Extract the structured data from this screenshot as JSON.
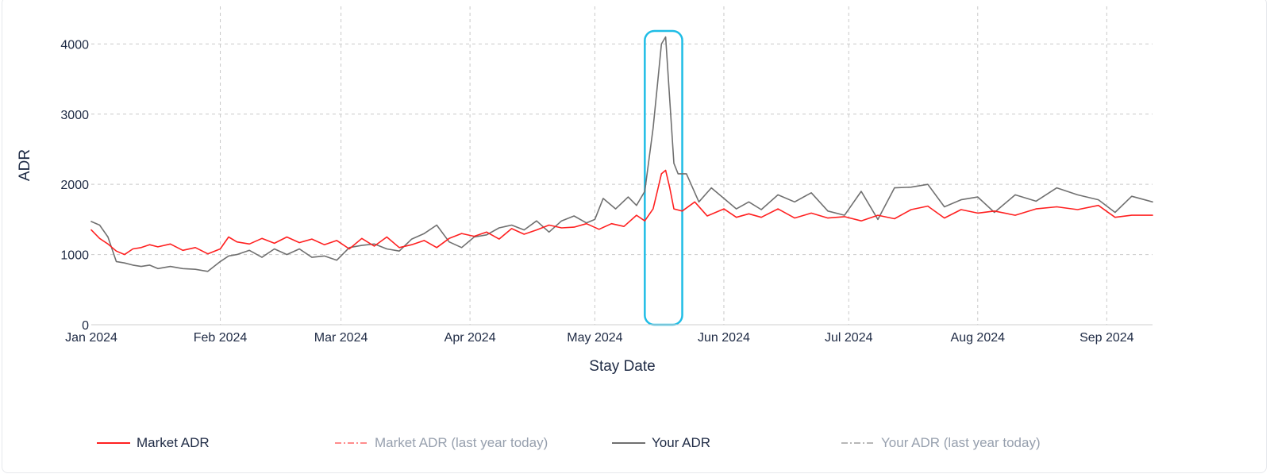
{
  "chart_data": {
    "type": "line",
    "xlabel": "Stay Date",
    "ylabel": "ADR",
    "ylim": [
      0,
      4400
    ],
    "xlim": [
      "2024-01-01",
      "2024-09-12"
    ],
    "yticks": [
      0,
      1000,
      2000,
      3000,
      4000
    ],
    "xticks": [
      {
        "label": "Jan 2024",
        "date": "2024-01-01"
      },
      {
        "label": "Feb 2024",
        "date": "2024-02-01"
      },
      {
        "label": "Mar 2024",
        "date": "2024-03-01"
      },
      {
        "label": "Apr 2024",
        "date": "2024-04-01"
      },
      {
        "label": "May 2024",
        "date": "2024-05-01"
      },
      {
        "label": "Jun 2024",
        "date": "2024-06-01"
      },
      {
        "label": "Jul 2024",
        "date": "2024-07-01"
      },
      {
        "label": "Aug 2024",
        "date": "2024-08-01"
      },
      {
        "label": "Sep 2024",
        "date": "2024-09-01"
      }
    ],
    "grid": true,
    "legend_position": "bottom",
    "highlight": {
      "x_start": "2024-05-13",
      "x_end": "2024-05-22",
      "color": "#1fbde6"
    },
    "series": [
      {
        "name": "Market ADR",
        "color": "#ff2020",
        "dash": "solid",
        "visible": true,
        "x": [
          "2024-01-01",
          "2024-01-03",
          "2024-01-05",
          "2024-01-07",
          "2024-01-09",
          "2024-01-11",
          "2024-01-13",
          "2024-01-15",
          "2024-01-17",
          "2024-01-20",
          "2024-01-23",
          "2024-01-26",
          "2024-01-29",
          "2024-02-01",
          "2024-02-03",
          "2024-02-05",
          "2024-02-08",
          "2024-02-11",
          "2024-02-14",
          "2024-02-17",
          "2024-02-20",
          "2024-02-23",
          "2024-02-26",
          "2024-02-29",
          "2024-03-03",
          "2024-03-06",
          "2024-03-09",
          "2024-03-12",
          "2024-03-15",
          "2024-03-18",
          "2024-03-21",
          "2024-03-24",
          "2024-03-27",
          "2024-03-30",
          "2024-04-02",
          "2024-04-05",
          "2024-04-08",
          "2024-04-11",
          "2024-04-14",
          "2024-04-17",
          "2024-04-20",
          "2024-04-23",
          "2024-04-26",
          "2024-04-29",
          "2024-05-02",
          "2024-05-05",
          "2024-05-08",
          "2024-05-11",
          "2024-05-13",
          "2024-05-15",
          "2024-05-16",
          "2024-05-17",
          "2024-05-18",
          "2024-05-19",
          "2024-05-20",
          "2024-05-22",
          "2024-05-25",
          "2024-05-28",
          "2024-06-01",
          "2024-06-04",
          "2024-06-07",
          "2024-06-10",
          "2024-06-14",
          "2024-06-18",
          "2024-06-22",
          "2024-06-26",
          "2024-06-30",
          "2024-07-04",
          "2024-07-08",
          "2024-07-12",
          "2024-07-16",
          "2024-07-20",
          "2024-07-24",
          "2024-07-28",
          "2024-08-01",
          "2024-08-05",
          "2024-08-10",
          "2024-08-15",
          "2024-08-20",
          "2024-08-25",
          "2024-08-30",
          "2024-09-03",
          "2024-09-07",
          "2024-09-12"
        ],
        "y": [
          1350,
          1230,
          1150,
          1050,
          1000,
          1080,
          1100,
          1140,
          1110,
          1150,
          1060,
          1100,
          1010,
          1080,
          1250,
          1180,
          1150,
          1230,
          1160,
          1250,
          1170,
          1220,
          1140,
          1200,
          1080,
          1230,
          1120,
          1250,
          1100,
          1140,
          1200,
          1100,
          1230,
          1300,
          1260,
          1320,
          1220,
          1370,
          1290,
          1350,
          1420,
          1380,
          1390,
          1440,
          1360,
          1440,
          1400,
          1560,
          1480,
          1650,
          1900,
          2150,
          2200,
          1950,
          1650,
          1620,
          1750,
          1550,
          1650,
          1530,
          1580,
          1530,
          1650,
          1520,
          1590,
          1520,
          1540,
          1480,
          1560,
          1510,
          1640,
          1690,
          1520,
          1640,
          1590,
          1620,
          1560,
          1650,
          1680,
          1640,
          1700,
          1530,
          1560,
          1560
        ]
      },
      {
        "name": "Market ADR (last year today)",
        "color": "#ff8c8c",
        "dash": "dashdot",
        "visible": false,
        "x": [],
        "y": []
      },
      {
        "name": "Your ADR",
        "color": "#707070",
        "dash": "solid",
        "visible": true,
        "x": [
          "2024-01-01",
          "2024-01-03",
          "2024-01-05",
          "2024-01-07",
          "2024-01-09",
          "2024-01-11",
          "2024-01-13",
          "2024-01-15",
          "2024-01-17",
          "2024-01-20",
          "2024-01-23",
          "2024-01-26",
          "2024-01-29",
          "2024-02-01",
          "2024-02-03",
          "2024-02-05",
          "2024-02-08",
          "2024-02-11",
          "2024-02-14",
          "2024-02-17",
          "2024-02-20",
          "2024-02-23",
          "2024-02-26",
          "2024-02-29",
          "2024-03-03",
          "2024-03-06",
          "2024-03-09",
          "2024-03-12",
          "2024-03-15",
          "2024-03-18",
          "2024-03-21",
          "2024-03-24",
          "2024-03-27",
          "2024-03-30",
          "2024-04-02",
          "2024-04-05",
          "2024-04-08",
          "2024-04-11",
          "2024-04-14",
          "2024-04-17",
          "2024-04-20",
          "2024-04-23",
          "2024-04-26",
          "2024-04-29",
          "2024-05-01",
          "2024-05-03",
          "2024-05-06",
          "2024-05-09",
          "2024-05-11",
          "2024-05-13",
          "2024-05-15",
          "2024-05-16",
          "2024-05-17",
          "2024-05-18",
          "2024-05-19",
          "2024-05-20",
          "2024-05-21",
          "2024-05-23",
          "2024-05-26",
          "2024-05-29",
          "2024-06-01",
          "2024-06-04",
          "2024-06-07",
          "2024-06-10",
          "2024-06-14",
          "2024-06-18",
          "2024-06-22",
          "2024-06-26",
          "2024-06-30",
          "2024-07-04",
          "2024-07-08",
          "2024-07-12",
          "2024-07-16",
          "2024-07-20",
          "2024-07-24",
          "2024-07-28",
          "2024-08-01",
          "2024-08-05",
          "2024-08-10",
          "2024-08-15",
          "2024-08-20",
          "2024-08-25",
          "2024-08-30",
          "2024-09-03",
          "2024-09-07",
          "2024-09-12"
        ],
        "y": [
          1470,
          1420,
          1250,
          900,
          880,
          850,
          830,
          850,
          800,
          830,
          800,
          790,
          760,
          900,
          980,
          1000,
          1060,
          960,
          1080,
          1000,
          1080,
          960,
          980,
          920,
          1100,
          1130,
          1150,
          1080,
          1050,
          1220,
          1300,
          1420,
          1180,
          1100,
          1250,
          1280,
          1380,
          1420,
          1350,
          1480,
          1320,
          1480,
          1550,
          1450,
          1500,
          1800,
          1650,
          1820,
          1700,
          1900,
          2800,
          3400,
          4000,
          4100,
          3200,
          2300,
          2150,
          2150,
          1750,
          1950,
          1800,
          1650,
          1750,
          1640,
          1850,
          1750,
          1880,
          1620,
          1560,
          1900,
          1500,
          1950,
          1960,
          2000,
          1680,
          1780,
          1820,
          1600,
          1850,
          1760,
          1950,
          1850,
          1780,
          1600,
          1830,
          1750
        ]
      },
      {
        "name": "Your ADR (last year today)",
        "color": "#b8b8b8",
        "dash": "dashdot",
        "visible": false,
        "x": [],
        "y": []
      }
    ]
  }
}
